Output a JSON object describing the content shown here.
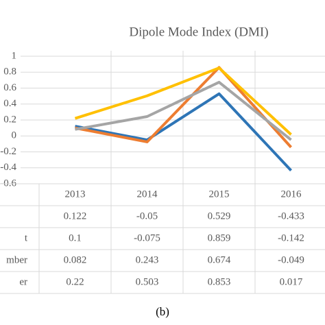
{
  "chart_data": {
    "type": "line",
    "title": "Dipole Mode Index (DMI)",
    "caption": "(b)",
    "categories": [
      "2013",
      "2014",
      "2015",
      "2016"
    ],
    "series": [
      {
        "name": null,
        "color": "#2e75b6",
        "values": [
          0.122,
          -0.05,
          0.529,
          -0.433
        ]
      },
      {
        "name": "t",
        "color": "#ed7d31",
        "values": [
          0.1,
          -0.075,
          0.859,
          -0.142
        ]
      },
      {
        "name": "mber",
        "color": "#a5a5a5",
        "values": [
          0.082,
          0.243,
          0.674,
          -0.049
        ]
      },
      {
        "name": "er",
        "color": "#ffc000",
        "values": [
          0.22,
          0.503,
          0.853,
          0.017
        ]
      }
    ],
    "ylim": [
      -0.6,
      1
    ],
    "yticks": [
      -0.6,
      -0.4,
      -0.2,
      0,
      0.2,
      0.4,
      0.6,
      0.8,
      1
    ],
    "grid": true
  }
}
